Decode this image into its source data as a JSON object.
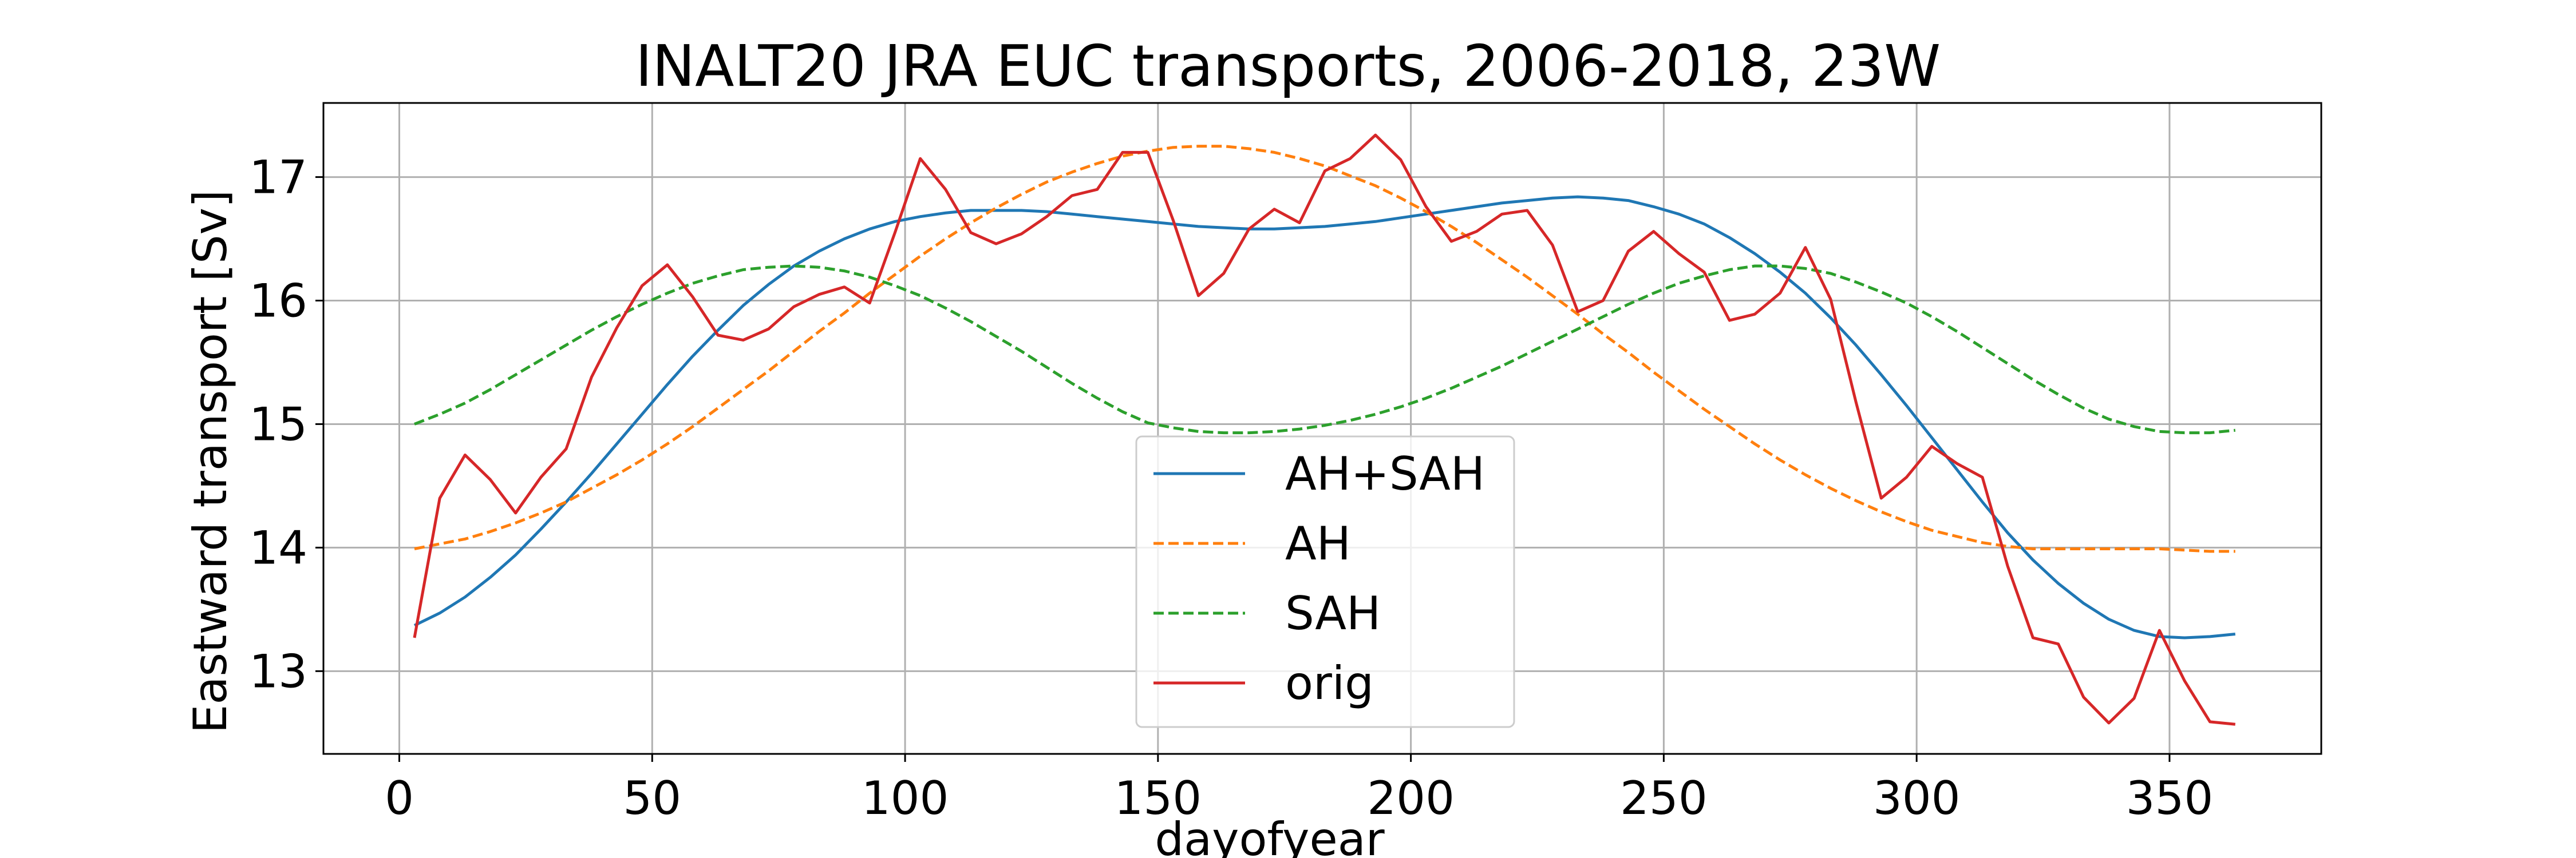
{
  "chart_data": {
    "type": "line",
    "title": "INALT20 JRA EUC transports, 2006-2018, 23W",
    "xlabel": "dayofyear",
    "ylabel": "Eastward transport [Sv]",
    "xlim": [
      -15,
      380
    ],
    "ylim": [
      12.33,
      17.6
    ],
    "xticks": [
      0,
      50,
      100,
      150,
      200,
      250,
      300,
      350
    ],
    "yticks": [
      13,
      14,
      15,
      16,
      17
    ],
    "grid": true,
    "legend_position": "lower center",
    "series": [
      {
        "name": "AH+SAH",
        "color": "#1f77b4",
        "dash": "solid",
        "x": [
          3,
          8,
          13,
          18,
          23,
          28,
          33,
          38,
          43,
          48,
          53,
          58,
          63,
          68,
          73,
          78,
          83,
          88,
          93,
          98,
          103,
          108,
          113,
          118,
          123,
          128,
          133,
          138,
          143,
          148,
          153,
          158,
          163,
          168,
          173,
          178,
          183,
          188,
          193,
          198,
          203,
          208,
          213,
          218,
          223,
          228,
          233,
          238,
          243,
          248,
          253,
          258,
          263,
          268,
          273,
          278,
          283,
          288,
          293,
          298,
          303,
          308,
          313,
          318,
          323,
          328,
          333,
          338,
          343,
          348,
          353,
          358,
          363
        ],
        "y": [
          13.37,
          13.47,
          13.6,
          13.76,
          13.94,
          14.15,
          14.37,
          14.6,
          14.84,
          15.08,
          15.32,
          15.55,
          15.76,
          15.96,
          16.13,
          16.28,
          16.4,
          16.5,
          16.58,
          16.64,
          16.68,
          16.71,
          16.73,
          16.73,
          16.73,
          16.72,
          16.7,
          16.68,
          16.66,
          16.64,
          16.62,
          16.6,
          16.59,
          16.58,
          16.58,
          16.59,
          16.6,
          16.62,
          16.64,
          16.67,
          16.7,
          16.73,
          16.76,
          16.79,
          16.81,
          16.83,
          16.84,
          16.83,
          16.81,
          16.76,
          16.7,
          16.62,
          16.51,
          16.38,
          16.23,
          16.06,
          15.86,
          15.64,
          15.4,
          15.15,
          14.89,
          14.63,
          14.37,
          14.12,
          13.9,
          13.71,
          13.55,
          13.42,
          13.33,
          13.28,
          13.27,
          13.28,
          13.3
        ]
      },
      {
        "name": "AH",
        "color": "#ff7f0e",
        "dash": "dashed",
        "x": [
          3,
          8,
          13,
          18,
          23,
          28,
          33,
          38,
          43,
          48,
          53,
          58,
          63,
          68,
          73,
          78,
          83,
          88,
          93,
          98,
          103,
          108,
          113,
          118,
          123,
          128,
          133,
          138,
          143,
          148,
          153,
          158,
          163,
          168,
          173,
          178,
          183,
          188,
          193,
          198,
          203,
          208,
          213,
          218,
          223,
          228,
          233,
          238,
          243,
          248,
          253,
          258,
          263,
          268,
          273,
          278,
          283,
          288,
          293,
          298,
          303,
          308,
          313,
          318,
          323,
          328,
          333,
          338,
          343,
          348,
          353,
          358,
          363
        ],
        "y": [
          13.99,
          14.03,
          14.07,
          14.13,
          14.2,
          14.28,
          14.37,
          14.48,
          14.59,
          14.71,
          14.84,
          14.98,
          15.13,
          15.28,
          15.43,
          15.59,
          15.75,
          15.9,
          16.06,
          16.21,
          16.36,
          16.5,
          16.63,
          16.75,
          16.86,
          16.96,
          17.04,
          17.11,
          17.17,
          17.21,
          17.24,
          17.25,
          17.25,
          17.23,
          17.2,
          17.15,
          17.09,
          17.01,
          16.93,
          16.83,
          16.72,
          16.6,
          16.47,
          16.33,
          16.19,
          16.04,
          15.89,
          15.73,
          15.58,
          15.42,
          15.27,
          15.12,
          14.98,
          14.84,
          14.71,
          14.59,
          14.48,
          14.38,
          14.29,
          14.21,
          14.14,
          14.09,
          14.04,
          14.01,
          13.99,
          13.99,
          13.99,
          13.99,
          13.99,
          13.99,
          13.98,
          13.97,
          13.97
        ]
      },
      {
        "name": "SAH",
        "color": "#2ca02c",
        "dash": "dashed",
        "x": [
          3,
          8,
          13,
          18,
          23,
          28,
          33,
          38,
          43,
          48,
          53,
          58,
          63,
          68,
          73,
          78,
          83,
          88,
          93,
          98,
          103,
          108,
          113,
          118,
          123,
          128,
          133,
          138,
          143,
          148,
          153,
          158,
          163,
          168,
          173,
          178,
          183,
          188,
          193,
          198,
          203,
          208,
          213,
          218,
          223,
          228,
          233,
          238,
          243,
          248,
          253,
          258,
          263,
          268,
          273,
          278,
          283,
          288,
          293,
          298,
          303,
          308,
          313,
          318,
          323,
          328,
          333,
          338,
          343,
          348,
          353,
          358,
          363
        ],
        "y": [
          15.0,
          15.08,
          15.17,
          15.28,
          15.4,
          15.52,
          15.64,
          15.76,
          15.87,
          15.97,
          16.06,
          16.14,
          16.2,
          16.25,
          16.27,
          16.28,
          16.27,
          16.24,
          16.19,
          16.12,
          16.04,
          15.94,
          15.83,
          15.71,
          15.59,
          15.46,
          15.33,
          15.21,
          15.1,
          15.01,
          14.97,
          14.94,
          14.93,
          14.93,
          14.94,
          14.96,
          14.99,
          15.03,
          15.08,
          15.14,
          15.21,
          15.29,
          15.38,
          15.47,
          15.57,
          15.67,
          15.77,
          15.87,
          15.97,
          16.06,
          16.14,
          16.2,
          16.25,
          16.28,
          16.28,
          16.26,
          16.22,
          16.15,
          16.07,
          15.98,
          15.87,
          15.75,
          15.62,
          15.49,
          15.36,
          15.24,
          15.13,
          15.04,
          14.98,
          14.94,
          14.93,
          14.93,
          14.95
        ]
      },
      {
        "name": "orig",
        "color": "#d62728",
        "dash": "solid",
        "x": [
          3,
          8,
          13,
          18,
          23,
          28,
          33,
          38,
          43,
          48,
          53,
          58,
          63,
          68,
          73,
          78,
          83,
          88,
          93,
          98,
          103,
          108,
          113,
          118,
          123,
          128,
          133,
          138,
          143,
          148,
          153,
          158,
          163,
          168,
          173,
          178,
          183,
          188,
          193,
          198,
          203,
          208,
          213,
          218,
          223,
          228,
          233,
          238,
          243,
          248,
          253,
          258,
          263,
          268,
          273,
          278,
          283,
          288,
          293,
          298,
          303,
          308,
          313,
          318,
          323,
          328,
          333,
          338,
          343,
          348,
          353,
          358,
          363
        ],
        "y": [
          13.27,
          14.4,
          14.75,
          14.55,
          14.28,
          14.57,
          14.8,
          15.38,
          15.78,
          16.12,
          16.29,
          16.03,
          15.72,
          15.68,
          15.77,
          15.95,
          16.05,
          16.11,
          15.98,
          16.55,
          17.15,
          16.9,
          16.55,
          16.46,
          16.54,
          16.68,
          16.85,
          16.9,
          17.2,
          17.2,
          16.65,
          16.04,
          16.22,
          16.58,
          16.74,
          16.63,
          17.05,
          17.15,
          17.34,
          17.14,
          16.76,
          16.48,
          16.56,
          16.7,
          16.73,
          16.45,
          15.91,
          16.0,
          16.4,
          16.56,
          16.38,
          16.23,
          15.84,
          15.89,
          16.06,
          16.43,
          16.01,
          15.18,
          14.4,
          14.57,
          14.82,
          14.68,
          14.57,
          13.85,
          13.27,
          13.22,
          12.79,
          12.58,
          12.78,
          13.33,
          12.92,
          12.59,
          12.57
        ]
      }
    ]
  }
}
